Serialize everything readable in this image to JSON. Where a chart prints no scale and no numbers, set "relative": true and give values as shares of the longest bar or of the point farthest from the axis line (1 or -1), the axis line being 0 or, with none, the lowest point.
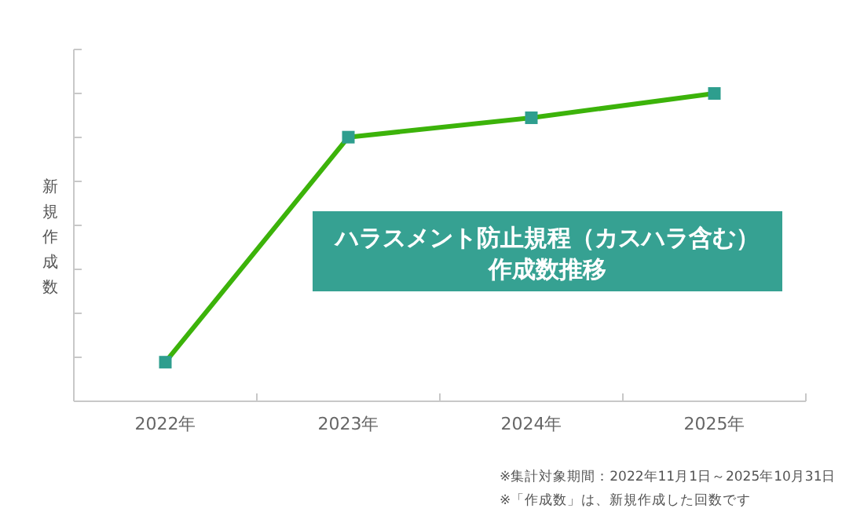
{
  "chart_data": {
    "type": "line",
    "title": "ハラスメント防止規程（カスハラ含む）",
    "subtitle": "作成数推移",
    "ylabel": "新規作成数",
    "categories": [
      "2022年",
      "2023年",
      "2024年",
      "2025年"
    ],
    "series": [
      {
        "color": "#3cb30a",
        "colors": [
          "#2e9e8e",
          "#2e9e8e",
          "#2e9e8e",
          "#2e9e8e"
        ],
        "values": [
          0.127,
          0.858,
          0.921,
          1
        ]
      }
    ],
    "relative": true,
    "marker": "square",
    "grid": false,
    "annotations": [
      "※集計対象期間：2022年11月1日～2025年10月31日",
      "※「作成数」は、新規作成した回数です"
    ]
  }
}
